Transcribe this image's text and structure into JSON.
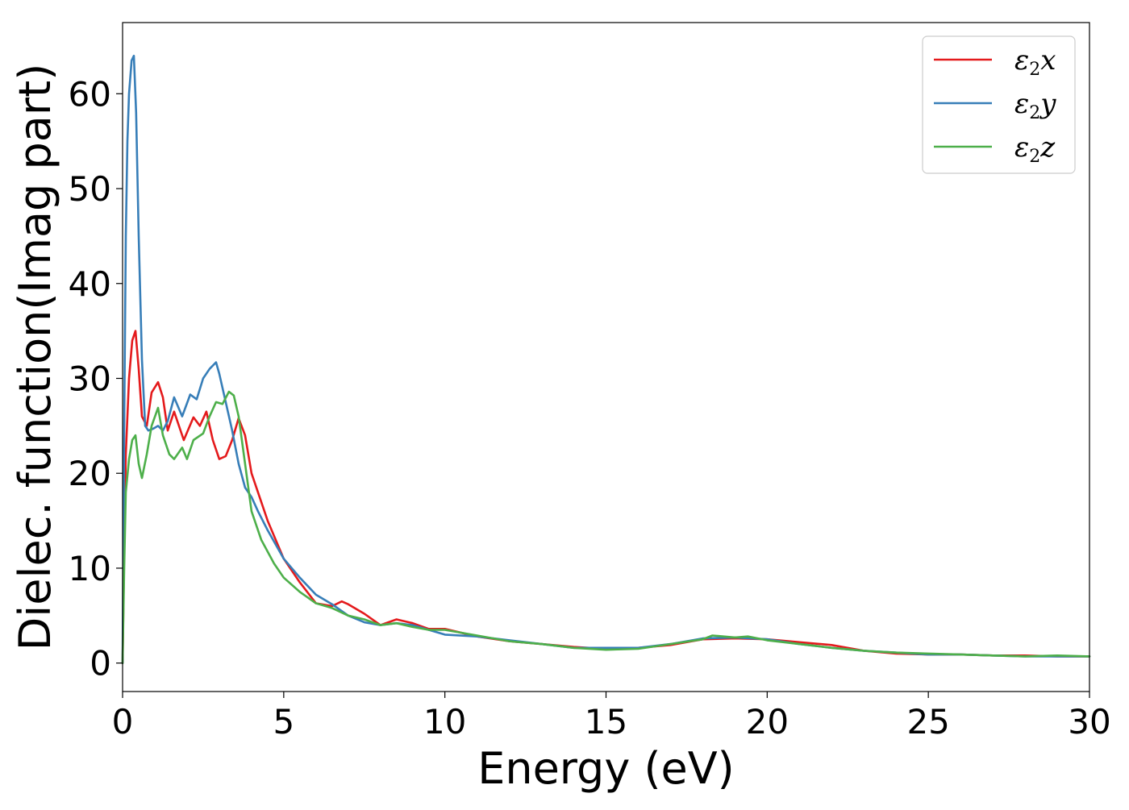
{
  "chart_data": {
    "type": "line",
    "title": "",
    "xlabel": "Energy (eV)",
    "ylabel": "Dielec. function(Imag part)",
    "xlim": [
      0,
      30
    ],
    "ylim": [
      -3,
      67.5
    ],
    "xticks": [
      0,
      5,
      10,
      15,
      20,
      25,
      30
    ],
    "xtick_labels": [
      "0",
      "5",
      "10",
      "15",
      "20",
      "25",
      "30"
    ],
    "yticks": [
      0,
      10,
      20,
      30,
      40,
      50,
      60
    ],
    "ytick_labels": [
      "0",
      "10",
      "20",
      "30",
      "40",
      "50",
      "60"
    ],
    "grid": false,
    "legend_position": "top-right",
    "series": [
      {
        "name": "ε2x",
        "legend_base": "ε",
        "legend_sub": "2",
        "legend_var": "x",
        "color": "#e41a1c",
        "x": [
          0,
          0.05,
          0.1,
          0.2,
          0.3,
          0.4,
          0.5,
          0.6,
          0.75,
          0.9,
          1.1,
          1.25,
          1.4,
          1.6,
          1.9,
          2.2,
          2.4,
          2.6,
          2.8,
          3.0,
          3.2,
          3.4,
          3.6,
          3.8,
          4.0,
          4.5,
          5.0,
          5.5,
          6.0,
          6.5,
          6.8,
          7.0,
          7.5,
          8.0,
          8.5,
          9.0,
          9.5,
          10,
          11,
          12,
          13,
          14,
          15,
          16,
          17,
          18,
          19,
          20,
          21,
          22,
          23,
          24,
          25,
          26,
          27,
          28,
          29,
          30
        ],
        "y": [
          0,
          12,
          22,
          30,
          34,
          35,
          31,
          26,
          25,
          28.5,
          29.6,
          28,
          24.5,
          26.5,
          23.5,
          25.9,
          25,
          26.5,
          23.5,
          21.5,
          21.8,
          23.5,
          25.8,
          24,
          20,
          15,
          11,
          8.5,
          6.3,
          6.0,
          6.5,
          6.2,
          5.2,
          4.0,
          4.6,
          4.2,
          3.6,
          3.6,
          2.8,
          2.3,
          2.0,
          1.7,
          1.5,
          1.6,
          1.9,
          2.5,
          2.6,
          2.5,
          2.2,
          1.9,
          1.3,
          1.0,
          0.9,
          0.9,
          0.8,
          0.8,
          0.7,
          0.7
        ]
      },
      {
        "name": "ε2y",
        "legend_base": "ε",
        "legend_sub": "2",
        "legend_var": "y",
        "color": "#377eb8",
        "x": [
          0,
          0.05,
          0.1,
          0.15,
          0.2,
          0.28,
          0.35,
          0.42,
          0.5,
          0.6,
          0.7,
          0.8,
          0.95,
          1.1,
          1.25,
          1.4,
          1.6,
          1.85,
          2.1,
          2.3,
          2.5,
          2.7,
          2.9,
          3.0,
          3.2,
          3.4,
          3.6,
          3.8,
          4.0,
          4.2,
          4.5,
          5.0,
          5.5,
          6.0,
          6.5,
          7.0,
          7.5,
          8.0,
          8.5,
          9.0,
          9.5,
          10,
          11,
          12,
          13,
          14,
          15,
          16,
          17,
          18,
          19,
          20,
          21,
          22,
          23,
          24,
          25,
          26,
          27,
          28,
          29,
          30
        ],
        "y": [
          0,
          25,
          45,
          55,
          60,
          63.5,
          64,
          58,
          45,
          32,
          25,
          24.5,
          24.7,
          25,
          24.5,
          25.5,
          28,
          26,
          28.3,
          27.8,
          30,
          31,
          31.7,
          30.5,
          27.5,
          24.5,
          21,
          18.5,
          17.5,
          16,
          14,
          11,
          9,
          7.2,
          6.2,
          5.0,
          4.3,
          4.0,
          4.2,
          4.0,
          3.5,
          3.0,
          2.8,
          2.4,
          2.0,
          1.6,
          1.6,
          1.6,
          2.0,
          2.6,
          2.7,
          2.5,
          2.0,
          1.6,
          1.3,
          1.1,
          0.9,
          0.9,
          0.8,
          0.7,
          0.7,
          0.7
        ]
      },
      {
        "name": "ε2z",
        "legend_base": "ε",
        "legend_sub": "2",
        "legend_var": "z",
        "color": "#4daf4a",
        "x": [
          0,
          0.05,
          0.1,
          0.2,
          0.3,
          0.4,
          0.5,
          0.6,
          0.75,
          0.9,
          1.1,
          1.25,
          1.45,
          1.6,
          1.85,
          2.0,
          2.2,
          2.5,
          2.7,
          2.9,
          3.1,
          3.3,
          3.45,
          3.6,
          3.8,
          4.0,
          4.3,
          4.7,
          5.0,
          5.5,
          6.0,
          6.5,
          7.0,
          7.5,
          8.0,
          8.5,
          9.0,
          9.5,
          10,
          11,
          12,
          13,
          14,
          15,
          16,
          17,
          18,
          18.3,
          19,
          19.4,
          20,
          21,
          22,
          23,
          24,
          25,
          26,
          27,
          28,
          29,
          30
        ],
        "y": [
          0,
          10,
          18,
          21.5,
          23.5,
          24,
          21,
          19.5,
          22,
          25,
          26.9,
          24,
          22,
          21.5,
          22.7,
          21.5,
          23.5,
          24.2,
          26,
          27.5,
          27.3,
          28.6,
          28.2,
          26,
          21,
          16,
          13,
          10.5,
          9,
          7.5,
          6.3,
          5.8,
          5.0,
          4.6,
          4.0,
          4.2,
          3.8,
          3.5,
          3.5,
          2.9,
          2.3,
          2.0,
          1.6,
          1.4,
          1.5,
          2.0,
          2.5,
          2.9,
          2.7,
          2.8,
          2.4,
          2.0,
          1.6,
          1.3,
          1.1,
          1.0,
          0.9,
          0.8,
          0.7,
          0.8,
          0.7
        ]
      }
    ]
  }
}
